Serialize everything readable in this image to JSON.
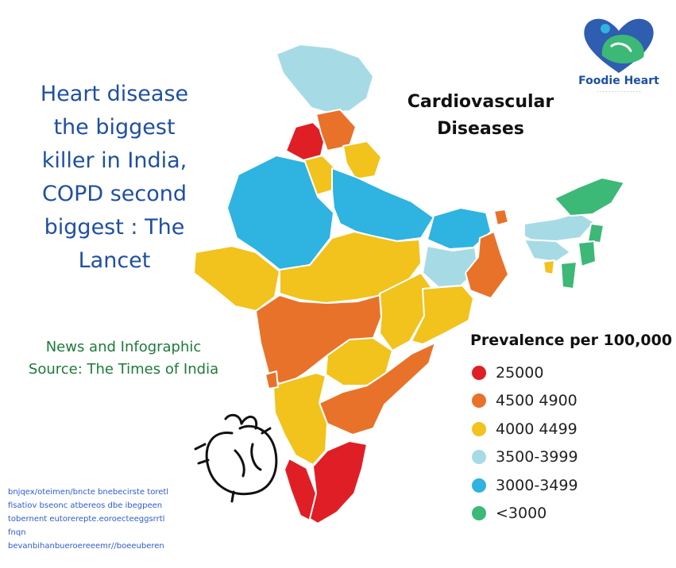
{
  "headline": "Heart disease\nthe biggest\nkiller in India,\nCOPD second\nbiggest : The\nLancet",
  "source_text": "News and Infographic\nSource: The Times of India",
  "fine_print": "bnjqex/oteimen/bncte bnebecirste toretl\nfisatiov bseonc atbereos dbe ibegpeen\ntobernent eutorerepte.eoroecteeggsrrtl\nfnqn\nbevanbihanbueroereeemr//boeeuberen",
  "map_title": "Cardiovascular\nDiseases",
  "logo": {
    "name": "Foodie Heart",
    "tagline": "· · · · · · · · · · · · · · ·"
  },
  "legend": {
    "title": "Prevalence per 100,000",
    "items": [
      {
        "label": "25000",
        "color": "#e01e25"
      },
      {
        "label": "4500 4900",
        "color": "#e8722a"
      },
      {
        "label": "4000 4499",
        "color": "#f2c21d"
      },
      {
        "label": "3500-3999",
        "color": "#a6dbe6"
      },
      {
        "label": "3000-3499",
        "color": "#2fb3e0"
      },
      {
        "label": "<3000",
        "color": "#3cb877"
      }
    ]
  },
  "colors": {
    "red": "#e01e25",
    "orange": "#e8722a",
    "yellow": "#f2c21d",
    "light_blue": "#a6dbe6",
    "blue": "#2fb3e0",
    "green": "#3cb877",
    "headline": "#1f4fa3",
    "source": "#1e7a3a"
  },
  "map": {
    "regions": [
      {
        "name": "Jammu & Kashmir",
        "category": "3500-3999",
        "color": "#a6dbe6"
      },
      {
        "name": "Punjab",
        "category": "25000",
        "color": "#e01e25"
      },
      {
        "name": "Himachal Pradesh",
        "category": "4500 4900",
        "color": "#e8722a"
      },
      {
        "name": "Uttarakhand",
        "category": "4000 4499",
        "color": "#f2c21d"
      },
      {
        "name": "Haryana",
        "category": "4000 4499",
        "color": "#f2c21d"
      },
      {
        "name": "Rajasthan",
        "category": "3000-3499",
        "color": "#2fb3e0"
      },
      {
        "name": "Uttar Pradesh",
        "category": "3000-3499",
        "color": "#2fb3e0"
      },
      {
        "name": "Bihar",
        "category": "3000-3499",
        "color": "#2fb3e0"
      },
      {
        "name": "Gujarat",
        "category": "4000 4499",
        "color": "#f2c21d"
      },
      {
        "name": "Madhya Pradesh",
        "category": "4000 4499",
        "color": "#f2c21d"
      },
      {
        "name": "Jharkhand",
        "category": "3500-3999",
        "color": "#a6dbe6"
      },
      {
        "name": "West Bengal",
        "category": "4500 4900",
        "color": "#e8722a"
      },
      {
        "name": "Chhattisgarh",
        "category": "4000 4499",
        "color": "#f2c21d"
      },
      {
        "name": "Odisha",
        "category": "4000 4499",
        "color": "#f2c21d"
      },
      {
        "name": "Maharashtra",
        "category": "4500 4900",
        "color": "#e8722a"
      },
      {
        "name": "Telangana",
        "category": "4000 4499",
        "color": "#f2c21d"
      },
      {
        "name": "Andhra Pradesh",
        "category": "4500 4900",
        "color": "#e8722a"
      },
      {
        "name": "Karnataka",
        "category": "4000 4499",
        "color": "#f2c21d"
      },
      {
        "name": "Goa",
        "category": "4500 4900",
        "color": "#e8722a"
      },
      {
        "name": "Tamil Nadu",
        "category": "25000",
        "color": "#e01e25"
      },
      {
        "name": "Kerala",
        "category": "25000",
        "color": "#e01e25"
      },
      {
        "name": "Sikkim",
        "category": "4500 4900",
        "color": "#e8722a"
      },
      {
        "name": "Assam",
        "category": "3500-3999",
        "color": "#a6dbe6"
      },
      {
        "name": "Arunachal Pradesh",
        "category": "<3000",
        "color": "#3cb877"
      },
      {
        "name": "Meghalaya",
        "category": "3500-3999",
        "color": "#a6dbe6"
      },
      {
        "name": "Nagaland",
        "category": "<3000",
        "color": "#3cb877"
      },
      {
        "name": "Manipur",
        "category": "<3000",
        "color": "#3cb877"
      },
      {
        "name": "Mizoram",
        "category": "<3000",
        "color": "#3cb877"
      },
      {
        "name": "Tripura",
        "category": "4000 4499",
        "color": "#f2c21d"
      }
    ]
  }
}
